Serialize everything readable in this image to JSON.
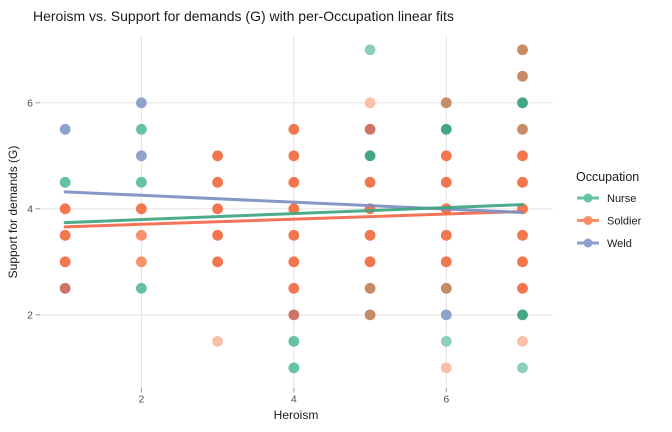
{
  "chart_data": {
    "type": "scatter",
    "title": "Heroism vs. Support for demands (G) with per-Occupation linear fits",
    "xlabel": "Heroism",
    "ylabel": "Support for demands (G)",
    "x_ticks": [
      2,
      4,
      6
    ],
    "y_ticks": [
      2,
      4,
      6
    ],
    "x_range": [
      0.67,
      7.4
    ],
    "y_range": [
      0.62,
      7.26
    ],
    "grid": "major-only",
    "legend": {
      "title": "Occupation",
      "position": "right",
      "items": [
        {
          "label": "Nurse",
          "color": "#66C2A5"
        },
        {
          "label": "Soldier",
          "color": "#FC8D62"
        },
        {
          "label": "Weld",
          "color": "#8DA0CB"
        }
      ]
    },
    "palette": {
      "orange_dark": "#F2764E",
      "orange_med": "#F8926C",
      "orange_pale": "#FBBFA8",
      "green_mid": "#66C2A5",
      "green_dark": "#45A687",
      "green_pale": "#8CD1B5",
      "blue": "#8FA2CC",
      "brown": "#C78B66",
      "brick": "#CE7465"
    },
    "points": [
      [
        1,
        5.5,
        "blue"
      ],
      [
        1,
        4.5,
        "green_mid"
      ],
      [
        1,
        4,
        "orange_dark"
      ],
      [
        1,
        3.5,
        "orange_dark"
      ],
      [
        1,
        3,
        "orange_dark"
      ],
      [
        1,
        2.5,
        "brick"
      ],
      [
        2,
        6,
        "blue"
      ],
      [
        2,
        5.5,
        "green_mid"
      ],
      [
        2,
        5,
        "blue"
      ],
      [
        2,
        4.5,
        "green_mid"
      ],
      [
        2,
        4,
        "orange_dark"
      ],
      [
        2,
        3.5,
        "orange_med"
      ],
      [
        2,
        3,
        "orange_med"
      ],
      [
        2,
        2.5,
        "green_mid"
      ],
      [
        3,
        5,
        "orange_dark"
      ],
      [
        3,
        4.5,
        "orange_dark"
      ],
      [
        3,
        4,
        "orange_dark"
      ],
      [
        3,
        3.5,
        "orange_dark"
      ],
      [
        3,
        3,
        "orange_dark"
      ],
      [
        3,
        1.5,
        "orange_pale"
      ],
      [
        4,
        5.5,
        "orange_dark"
      ],
      [
        4,
        5,
        "orange_dark"
      ],
      [
        4,
        4.5,
        "orange_dark"
      ],
      [
        4,
        4,
        "orange_dark"
      ],
      [
        4,
        3.5,
        "orange_dark"
      ],
      [
        4,
        3,
        "orange_dark"
      ],
      [
        4,
        2.5,
        "orange_dark"
      ],
      [
        4,
        2,
        "brick"
      ],
      [
        4,
        1.5,
        "green_mid"
      ],
      [
        4,
        1,
        "green_mid"
      ],
      [
        5,
        7,
        "green_pale"
      ],
      [
        5,
        6,
        "orange_pale"
      ],
      [
        5,
        5.5,
        "brick"
      ],
      [
        5,
        5,
        "green_dark"
      ],
      [
        5,
        4.5,
        "orange_dark"
      ],
      [
        5,
        4,
        "orange_dark"
      ],
      [
        5,
        3.5,
        "orange_dark"
      ],
      [
        5,
        3,
        "orange_dark"
      ],
      [
        5,
        2.5,
        "brown"
      ],
      [
        5,
        2,
        "brown"
      ],
      [
        6,
        6,
        "brown"
      ],
      [
        6,
        5.5,
        "green_dark"
      ],
      [
        6,
        5,
        "orange_dark"
      ],
      [
        6,
        4.5,
        "orange_dark"
      ],
      [
        6,
        4,
        "orange_dark"
      ],
      [
        6,
        3.5,
        "orange_dark"
      ],
      [
        6,
        3,
        "orange_dark"
      ],
      [
        6,
        2.5,
        "brown"
      ],
      [
        6,
        2,
        "blue"
      ],
      [
        6,
        1.5,
        "green_pale"
      ],
      [
        6,
        1,
        "orange_pale"
      ],
      [
        7,
        7,
        "brown"
      ],
      [
        7,
        6.5,
        "brown"
      ],
      [
        7,
        6,
        "green_dark"
      ],
      [
        7,
        5.5,
        "brown"
      ],
      [
        7,
        5,
        "orange_dark"
      ],
      [
        7,
        4.5,
        "orange_dark"
      ],
      [
        7,
        4,
        "orange_dark"
      ],
      [
        7,
        3.5,
        "orange_dark"
      ],
      [
        7,
        3,
        "orange_dark"
      ],
      [
        7,
        2.5,
        "orange_dark"
      ],
      [
        7,
        2,
        "green_dark"
      ],
      [
        7,
        1.5,
        "orange_pale"
      ],
      [
        7,
        1,
        "green_pale"
      ]
    ],
    "fit_lines": [
      {
        "occupation": "Soldier",
        "color": "#F2694A",
        "x": [
          1,
          7
        ],
        "y": [
          3.66,
          3.95
        ]
      },
      {
        "occupation": "Weld",
        "color": "#7D90C2",
        "x": [
          1,
          7
        ],
        "y": [
          4.32,
          3.93
        ]
      },
      {
        "occupation": "Nurse",
        "color": "#3FA583",
        "x": [
          1,
          7
        ],
        "y": [
          3.74,
          4.08
        ]
      }
    ]
  }
}
